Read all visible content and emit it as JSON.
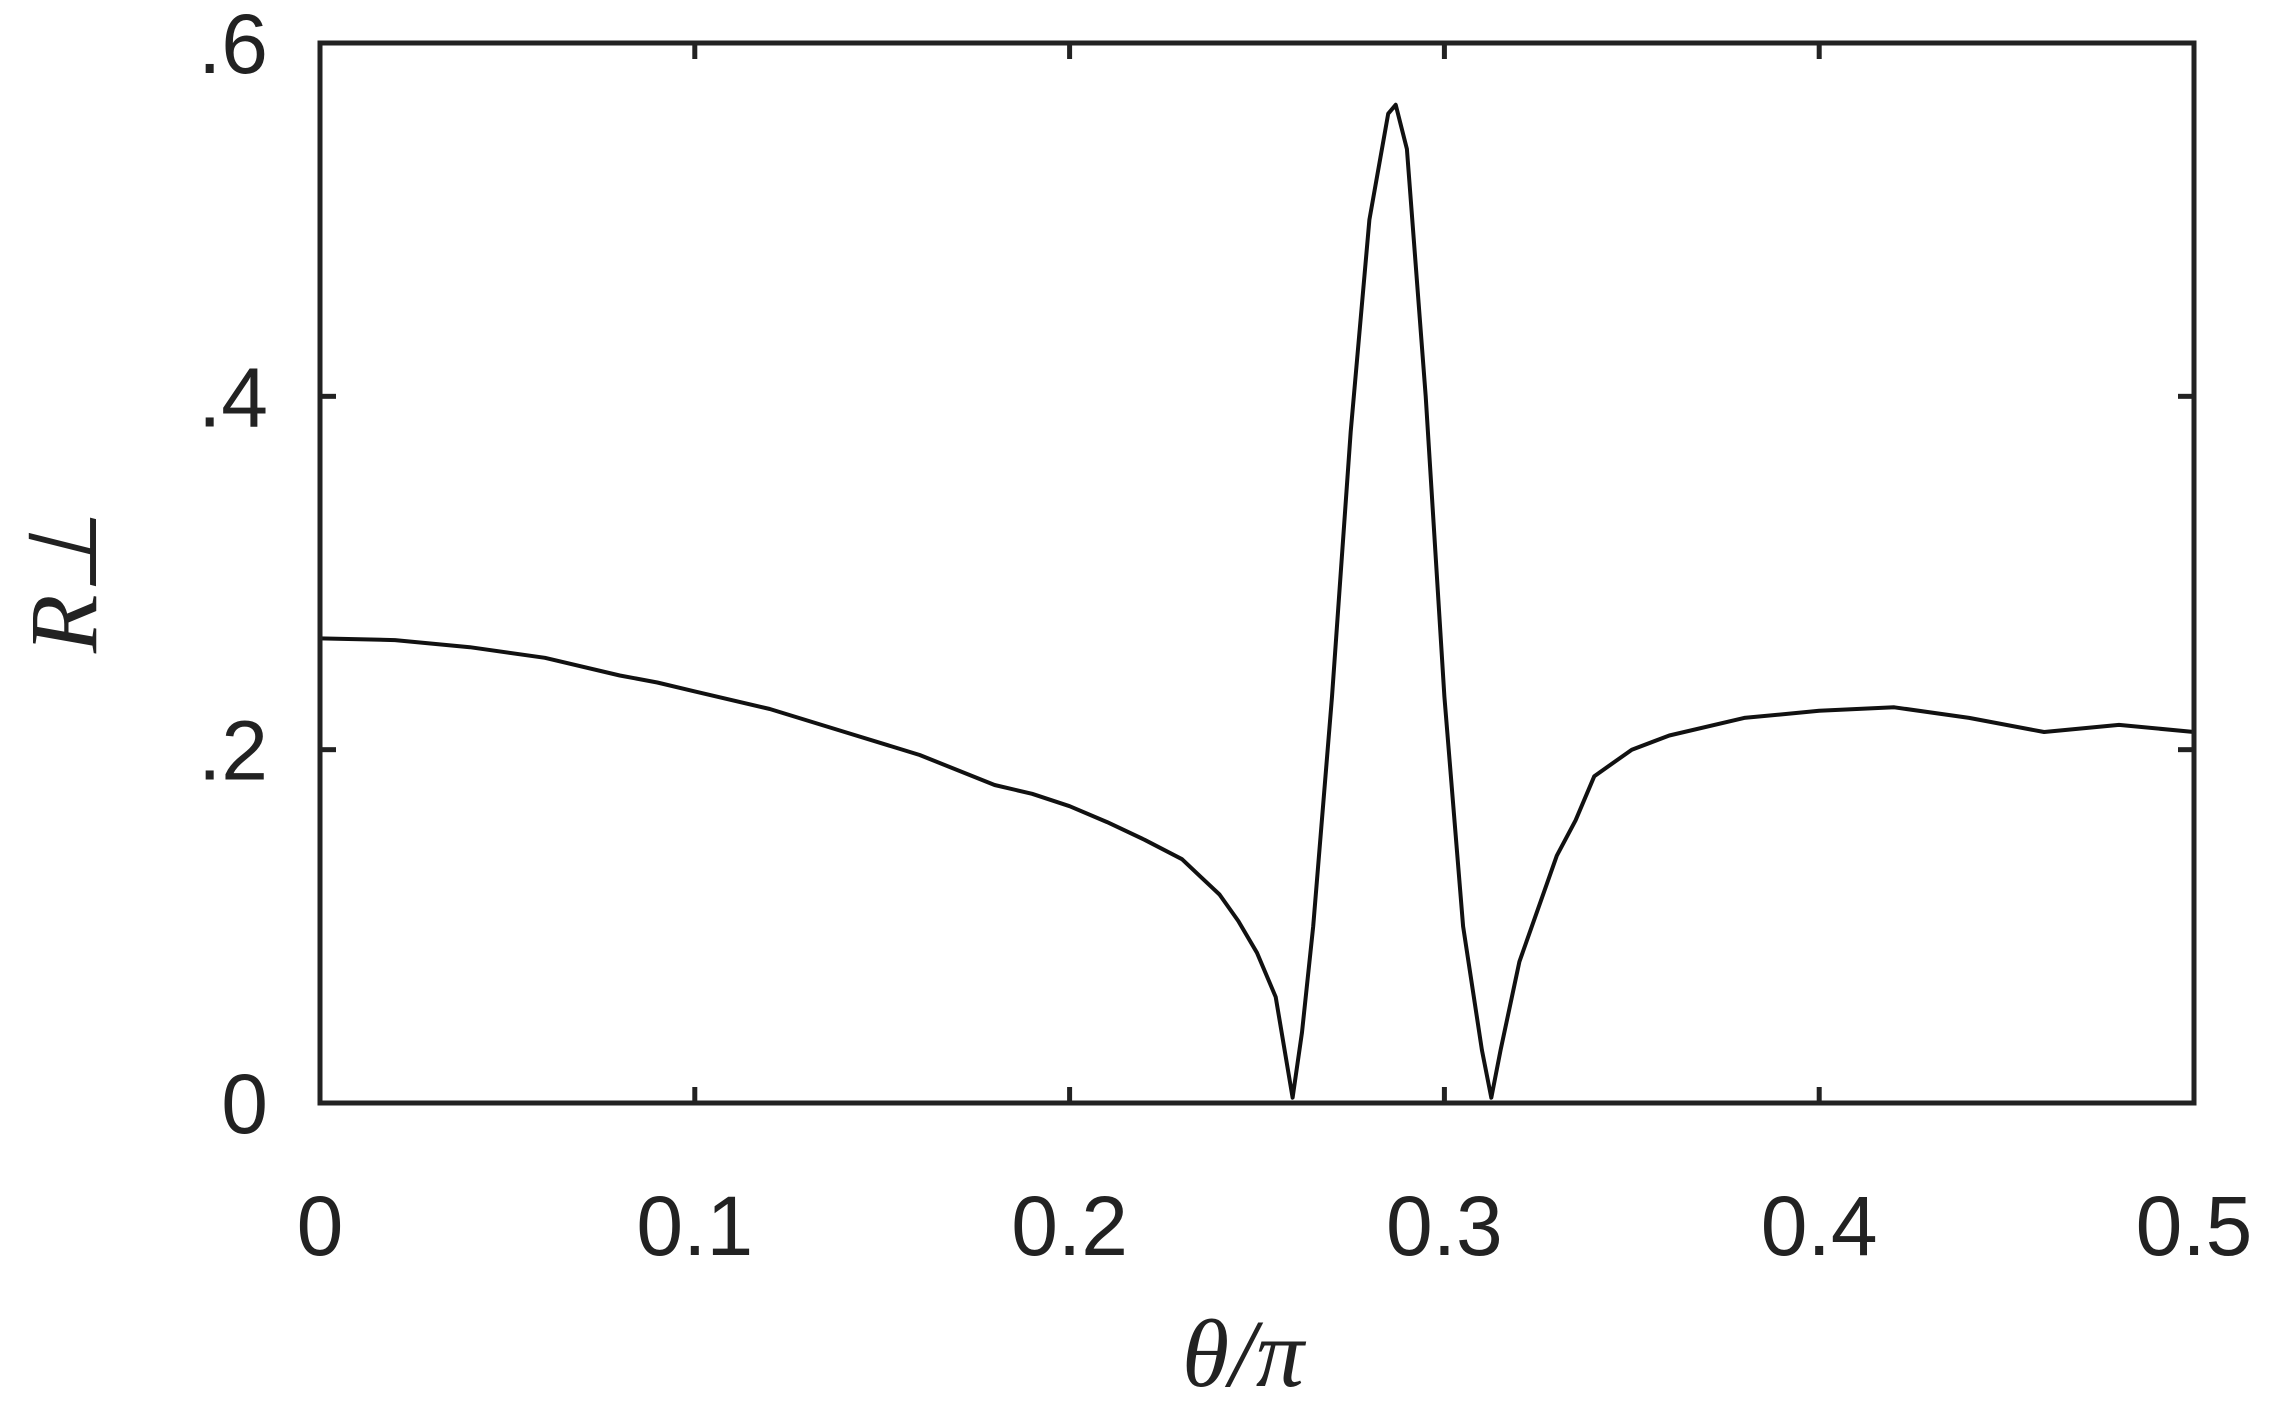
{
  "chart_data": {
    "type": "line",
    "title": "",
    "xlabel": "θ/π",
    "ylabel": "R⊥",
    "xlim": [
      0,
      0.5
    ],
    "ylim": [
      0,
      0.6
    ],
    "x_ticks": [
      0,
      0.1,
      0.2,
      0.3,
      0.4,
      0.5
    ],
    "x_tick_labels": [
      "0",
      "0.1",
      "0.2",
      "0.3",
      "0.4",
      "0.5"
    ],
    "y_ticks": [
      0,
      0.2,
      0.4,
      0.6
    ],
    "y_tick_labels": [
      "0",
      ".2",
      ".4",
      ".6"
    ],
    "grid": false,
    "line_color": "#111111",
    "axes_color": "#222222",
    "series": [
      {
        "x": [
          0.0,
          0.02,
          0.04,
          0.06,
          0.08,
          0.09,
          0.1,
          0.12,
          0.14,
          0.16,
          0.18,
          0.19,
          0.2,
          0.21,
          0.22,
          0.23,
          0.235,
          0.24,
          0.245,
          0.25,
          0.255,
          0.2595,
          0.262,
          0.265,
          0.27,
          0.275,
          0.28,
          0.285,
          0.287,
          0.29,
          0.295,
          0.3,
          0.305,
          0.31,
          0.3125,
          0.315,
          0.32,
          0.325,
          0.33,
          0.335,
          0.34,
          0.35,
          0.36,
          0.38,
          0.4,
          0.42,
          0.44,
          0.46,
          0.48,
          0.5
        ],
        "y": [
          0.263,
          0.262,
          0.258,
          0.252,
          0.242,
          0.238,
          0.233,
          0.223,
          0.21,
          0.197,
          0.18,
          0.175,
          0.168,
          0.159,
          0.149,
          0.138,
          0.128,
          0.118,
          0.103,
          0.085,
          0.06,
          0.003,
          0.04,
          0.1,
          0.23,
          0.38,
          0.5,
          0.56,
          0.565,
          0.54,
          0.4,
          0.23,
          0.1,
          0.03,
          0.003,
          0.03,
          0.08,
          0.11,
          0.14,
          0.16,
          0.185,
          0.2,
          0.208,
          0.218,
          0.222,
          0.224,
          0.218,
          0.21,
          0.214,
          0.21
        ]
      }
    ]
  }
}
